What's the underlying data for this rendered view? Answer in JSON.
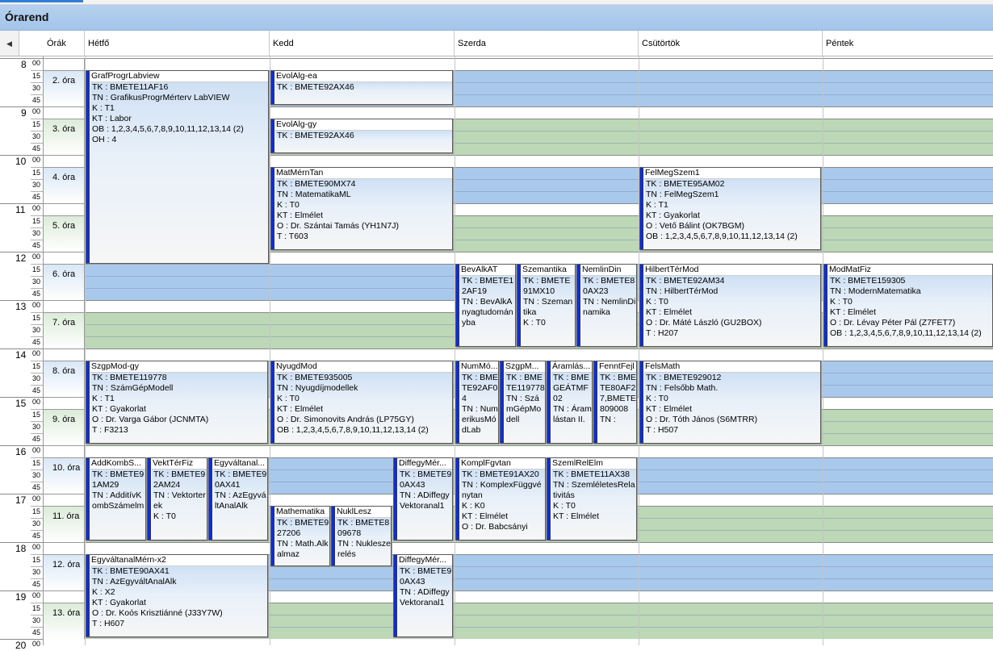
{
  "title": "Órarend",
  "scroll_icon": "left-arrow-icon",
  "headers": {
    "orak": "Órák",
    "days": [
      "Hétfő",
      "Kedd",
      "Szerda",
      "Csütörtök",
      "Péntek"
    ]
  },
  "hours": [
    "8",
    "9",
    "10",
    "11",
    "12",
    "13",
    "14",
    "15",
    "16",
    "17",
    "18",
    "19",
    "20"
  ],
  "minute_labels": [
    "00",
    "15",
    "30",
    "45"
  ],
  "periods": [
    "2. óra",
    "3. óra",
    "4. óra",
    "5. óra",
    "6. óra",
    "7. óra",
    "8. óra",
    "9. óra",
    "10. óra",
    "11. óra",
    "12. óra",
    "13. óra"
  ],
  "colors": {
    "blue_band": "#a9c9ec",
    "green_band": "#bcd8b6",
    "event_bar": "#1530b8"
  },
  "events": [
    {
      "id": "grafprogr",
      "title": "GrafProgrLabview",
      "lines": [
        "TK : BMETE11AF16",
        "TN : GrafikusProgrMérterv LabVIEW",
        "K : T1",
        "KT : Labor",
        "OB : 1,2,3,4,5,6,7,8,9,10,11,12,13,14 (2)",
        "OH : 4"
      ]
    },
    {
      "id": "evolalg-ea",
      "title": "EvolAlg-ea",
      "lines": [
        "TK : BMETE92AX46"
      ]
    },
    {
      "id": "evolalg-gy",
      "title": "EvolAlg-gy",
      "lines": [
        "TK : BMETE92AX46"
      ]
    },
    {
      "id": "matmerntan",
      "title": "MatMérnTan",
      "lines": [
        "TK : BMETE90MX74",
        "TN : MatematikaML",
        "K : T0",
        "KT : Elmélet",
        "O : Dr. Szántai Tamás (YH1N7J)",
        "T : T603"
      ]
    },
    {
      "id": "felmegszem",
      "title": "FelMegSzem1",
      "lines": [
        "TK : BMETE95AM02",
        "TN : FelMegSzem1",
        "K : T1",
        "KT : Gyakorlat",
        "O : Vető Bálint (OK7BGM)",
        "OB : 1,2,3,4,5,6,7,8,9,10,11,12,13,14 (2)"
      ]
    },
    {
      "id": "bevalkat",
      "title": "BevAlkAT",
      "lines": [
        "TK : BMETE12AF19",
        "TN : BevAlkAnyagtudományba"
      ]
    },
    {
      "id": "szemantika",
      "title": "Szemantika",
      "lines": [
        "TK : BMETE91MX10",
        "TN : Szemantika",
        "K : T0"
      ]
    },
    {
      "id": "nemlindin",
      "title": "NemlinDin",
      "lines": [
        "TK : BMETE80AX23",
        "TN : NemlinDinamika"
      ]
    },
    {
      "id": "hilberttermod",
      "title": "HilbertTérMod",
      "lines": [
        "TK : BMETE92AM34",
        "TN : HilbertTérMod",
        "K : T0",
        "KT : Elmélet",
        "O : Dr. Máté László (GU2BOX)",
        "T : H207"
      ]
    },
    {
      "id": "modmatfiz",
      "title": "ModMatFiz",
      "lines": [
        "TK : BMETE159305",
        "TN : ModernMatematika",
        "K : T0",
        "KT : Elmélet",
        "O : Dr. Lévay Péter Pál (Z7FET7)",
        "OB : 1,2,3,4,5,6,7,8,9,10,11,12,13,14 (2)"
      ]
    },
    {
      "id": "szgpmod-gy",
      "title": "SzgpMod-gy",
      "lines": [
        "TK : BMETE119778",
        "TN : SzámGépModell",
        "K : T1",
        "KT : Gyakorlat",
        "O : Dr. Varga Gábor (JCNMTA)",
        "T : F3213"
      ]
    },
    {
      "id": "nyugdmod",
      "title": "NyugdMod",
      "lines": [
        "TK : BMETE935005",
        "TN : Nyugdíjmodellek",
        "K : T0",
        "KT : Elmélet",
        "O : Dr. Simonovits András (LP75GY)",
        "OB : 1,2,3,4,5,6,7,8,9,10,11,12,13,14 (2)"
      ]
    },
    {
      "id": "nummod",
      "title": "NumMó...",
      "lines": [
        "TK : BMETE92AF04",
        "TN : NumerikusMódLab"
      ]
    },
    {
      "id": "szgpm",
      "title": "SzgpM...",
      "lines": [
        "TK : BMETE119778",
        "TN : SzámGépModell"
      ]
    },
    {
      "id": "aramlas",
      "title": "Áramlás...",
      "lines": [
        "TK : BMEGEÁTMF02",
        "TN : Áramlástan II."
      ]
    },
    {
      "id": "fenntfejl",
      "title": "FenntFejl",
      "lines": [
        "TK : BMETE80AF27,BMETE809008",
        "TN :"
      ]
    },
    {
      "id": "felsmath",
      "title": "FelsMath",
      "lines": [
        "TK : BMETE929012",
        "TN : Felsőbb Math.",
        "K : T0",
        "KT : Elmélet",
        "O : Dr. Tóth János (S6MTRR)",
        "T : H507"
      ]
    },
    {
      "id": "addkomb",
      "title": "AddKombS...",
      "lines": [
        "TK : BMETE91AM29",
        "TN : AdditívKombSzámelm"
      ]
    },
    {
      "id": "vekttérfiz",
      "title": "VektTérFiz",
      "lines": [
        "TK : BMETE92AM24",
        "TN : Vektorterek",
        "K : T0"
      ]
    },
    {
      "id": "egyvaltanal",
      "title": "Egyváltanal...",
      "lines": [
        "TK : BMETE90AX41",
        "TN : AzEgyváltAnalAlk"
      ]
    },
    {
      "id": "diffegy1",
      "title": "DiffegyMér...",
      "lines": [
        "TK : BMETE90AX43",
        "TN : ADiffegyVektoranal1"
      ]
    },
    {
      "id": "komplfgv",
      "title": "KomplFgvtan",
      "lines": [
        "TK : BMETE91AX20",
        "TN : KomplexFüggvénytan",
        "K : K0",
        "KT : Elmélet",
        "O : Dr. Babcsányi"
      ]
    },
    {
      "id": "szemlrelelm",
      "title": "SzemlRelElm",
      "lines": [
        "TK : BMETE11AX38",
        "TN : SzemléletesRelativitás",
        "K : T0",
        "KT : Elmélet"
      ]
    },
    {
      "id": "mathematika",
      "title": "Mathematika",
      "lines": [
        "TK : BMETE927206",
        "TN : Math.Alkalmaz"
      ]
    },
    {
      "id": "nukllesz",
      "title": "NuklLesz",
      "lines": [
        "TK : BMETE809678",
        "TN : Nukleszerelés"
      ]
    },
    {
      "id": "egyvaltanalmern",
      "title": "EgyváltanalMérn-x2",
      "lines": [
        "TK : BMETE90AX41",
        "TN : AzEgyváltAnalAlk",
        "K : X2",
        "KT : Gyakorlat",
        "O : Dr. Koós Krisztiánné (J33Y7W)",
        "T : H607"
      ]
    },
    {
      "id": "diffegy2",
      "title": "DiffegyMér...",
      "lines": [
        "TK : BMETE90AX43",
        "TN : ADiffegyVektoranal1"
      ]
    }
  ]
}
